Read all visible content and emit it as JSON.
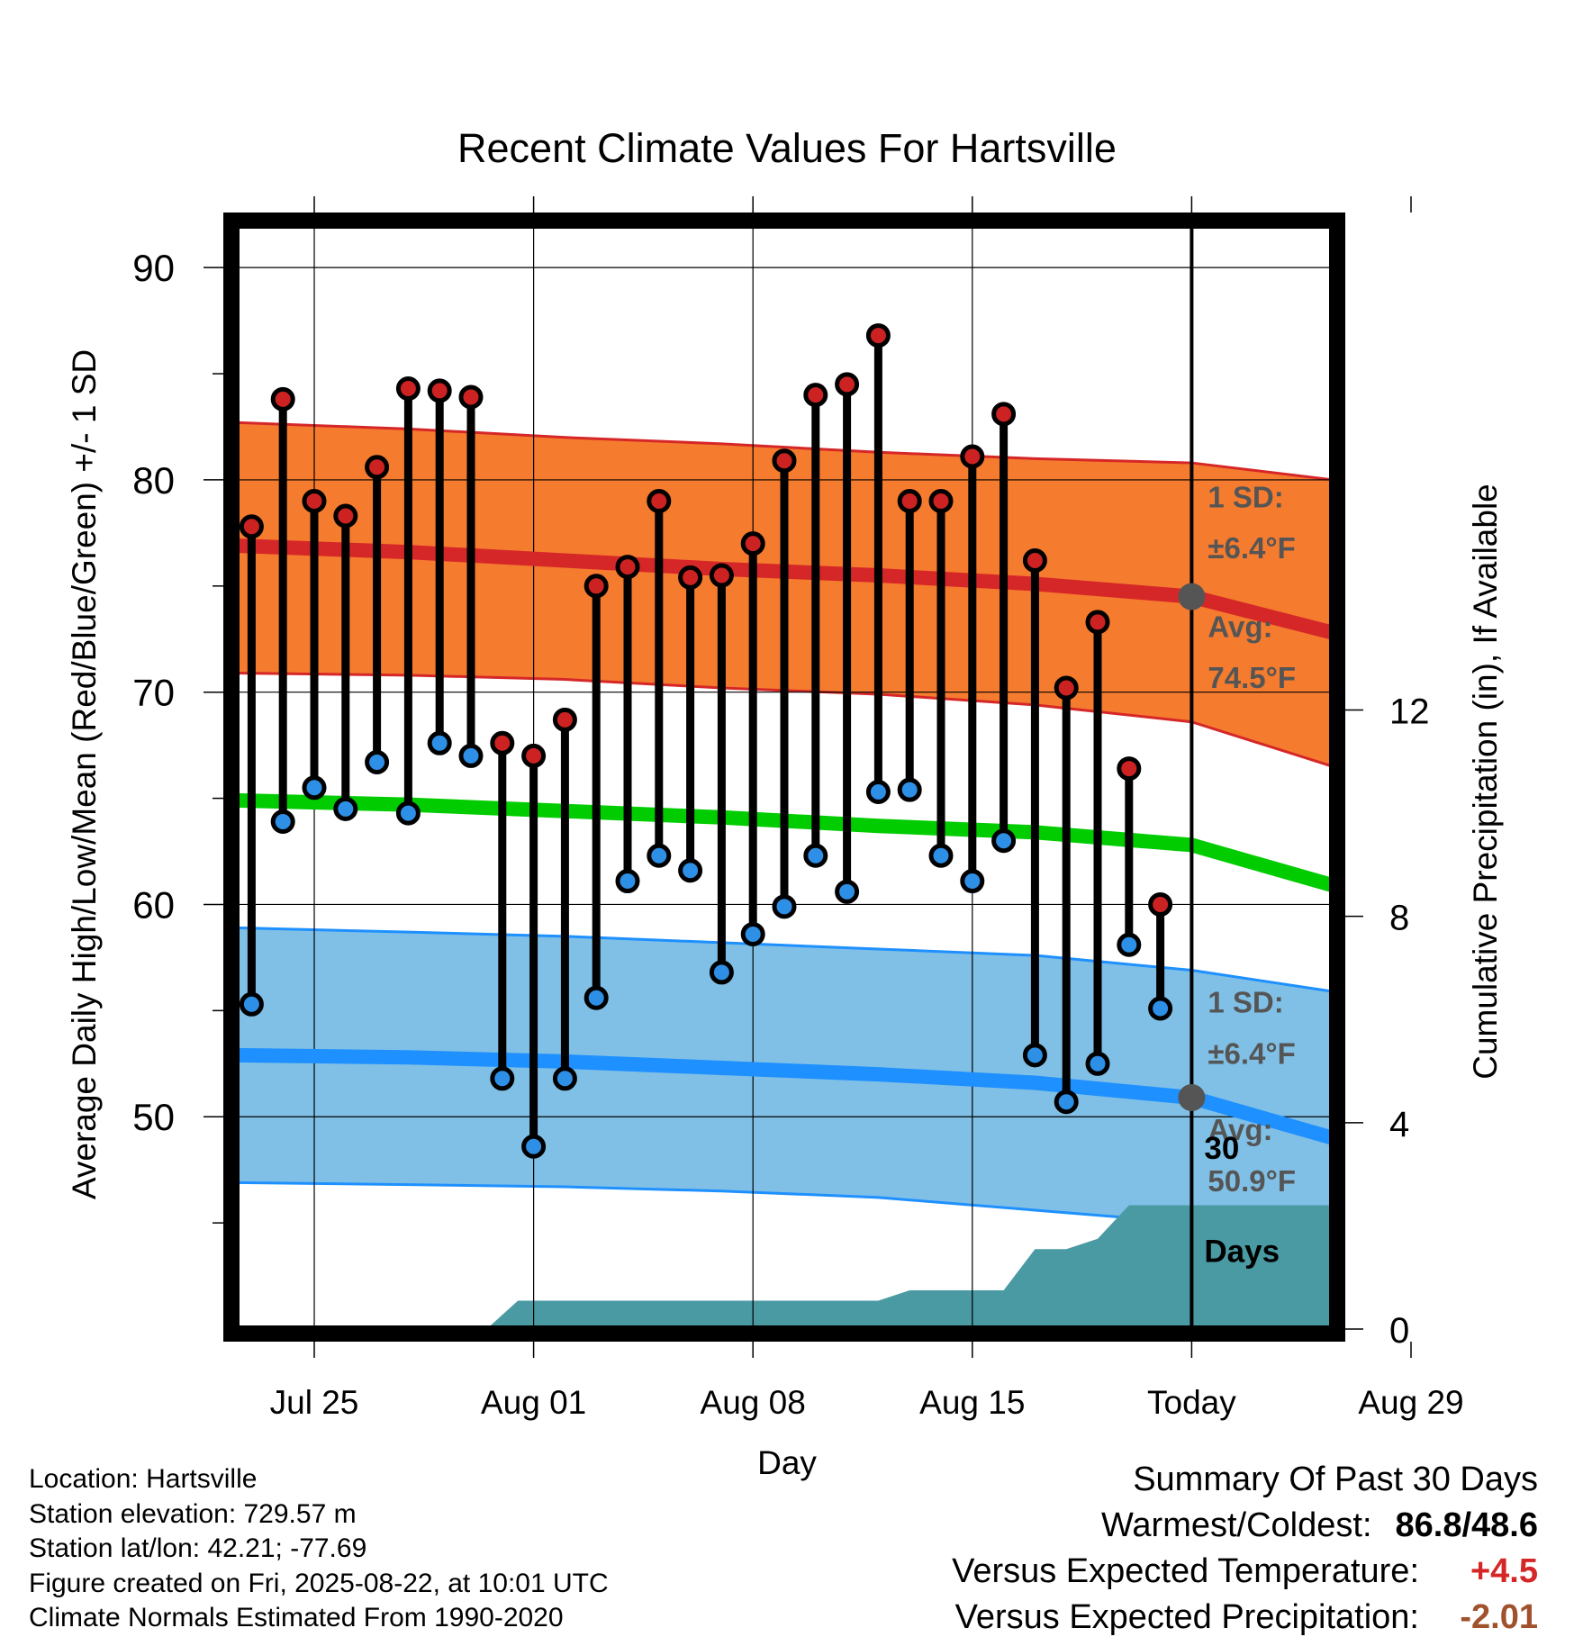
{
  "chart_data": {
    "type": "line",
    "title": "Recent Climate Values For Hartsville",
    "xlabel": "Day",
    "ylabel": "Average Daily High/Low/Mean (Red/Blue/Green) +/- 1 SD",
    "y2label": "Cumulative Precipitation (in), If Available",
    "ylim": [
      40,
      92
    ],
    "y2lim": [
      0,
      21.4
    ],
    "xlim": [
      -0.5,
      34.5
    ],
    "x_ticks": [
      {
        "x": 2,
        "label": "Jul 25"
      },
      {
        "x": 9,
        "label": "Aug 01"
      },
      {
        "x": 16,
        "label": "Aug 08"
      },
      {
        "x": 23,
        "label": "Aug 15"
      },
      {
        "x": 30,
        "label": "Today"
      },
      {
        "x": 37,
        "label": "Aug 29"
      }
    ],
    "y_ticks": [
      50,
      60,
      70,
      80,
      90
    ],
    "y2_ticks": [
      0,
      4,
      8,
      12
    ],
    "grid": true,
    "today_x": 30,
    "daily_x": [
      0,
      1,
      2,
      3,
      4,
      5,
      6,
      7,
      8,
      9,
      10,
      11,
      12,
      13,
      14,
      15,
      16,
      17,
      18,
      19,
      20,
      21,
      22,
      23,
      24,
      25,
      26,
      27,
      28,
      29
    ],
    "daily_high": [
      77.8,
      83.8,
      79.0,
      78.3,
      80.6,
      84.3,
      84.2,
      83.9,
      67.6,
      67.0,
      68.7,
      75.0,
      75.9,
      79.0,
      75.4,
      75.5,
      77.0,
      80.9,
      84.0,
      84.5,
      86.8,
      79.0,
      79.0,
      81.1,
      83.1,
      76.2,
      70.2,
      73.3,
      66.4,
      60.0
    ],
    "daily_low": [
      55.3,
      63.9,
      65.5,
      64.5,
      66.7,
      64.3,
      67.6,
      67.0,
      51.8,
      48.6,
      51.8,
      55.6,
      61.1,
      62.3,
      61.6,
      56.8,
      58.6,
      59.9,
      62.3,
      60.6,
      65.3,
      65.4,
      62.3,
      61.1,
      63.0,
      52.9,
      50.7,
      52.5,
      58.1,
      55.1
    ],
    "normals_x": [
      -0.5,
      34.5
    ],
    "series": [
      {
        "name": "Average High",
        "x": [
          -0.5,
          5,
          10,
          15,
          20,
          25,
          30,
          34.5
        ],
        "values": [
          76.9,
          76.6,
          76.2,
          75.8,
          75.5,
          75.1,
          74.5,
          72.8
        ]
      },
      {
        "name": "Average Low",
        "x": [
          -0.5,
          5,
          10,
          15,
          20,
          25,
          30,
          34.5
        ],
        "values": [
          52.9,
          52.8,
          52.6,
          52.3,
          52.0,
          51.6,
          50.9,
          49.0
        ]
      },
      {
        "name": "Average Mean",
        "x": [
          -0.5,
          5,
          10,
          15,
          20,
          25,
          30,
          34.5
        ],
        "values": [
          64.9,
          64.7,
          64.4,
          64.1,
          63.7,
          63.4,
          62.8,
          60.9
        ]
      },
      {
        "name": "High +1 SD",
        "x": [
          -0.5,
          5,
          10,
          15,
          20,
          25,
          30,
          34.5
        ],
        "values": [
          82.7,
          82.4,
          82.0,
          81.7,
          81.3,
          81.0,
          80.8,
          80.0
        ]
      },
      {
        "name": "High -1 SD",
        "x": [
          -0.5,
          5,
          10,
          15,
          20,
          25,
          30,
          34.5
        ],
        "values": [
          70.9,
          70.8,
          70.6,
          70.2,
          69.9,
          69.4,
          68.6,
          66.5
        ]
      },
      {
        "name": "Low +1 SD",
        "x": [
          -0.5,
          5,
          10,
          15,
          20,
          25,
          30,
          34.5
        ],
        "values": [
          58.9,
          58.7,
          58.5,
          58.2,
          57.9,
          57.6,
          56.9,
          55.9
        ]
      },
      {
        "name": "Low -1 SD",
        "x": [
          -0.5,
          5,
          10,
          15,
          20,
          25,
          30,
          34.5
        ],
        "values": [
          46.9,
          46.8,
          46.7,
          46.5,
          46.2,
          45.6,
          45.0,
          45.0
        ]
      }
    ],
    "precip_x": [
      -0.5,
      7.5,
      8.5,
      9,
      10,
      11,
      12,
      13,
      14,
      15,
      16,
      17,
      18,
      19,
      20,
      21,
      22,
      23,
      24,
      25,
      26,
      27,
      28,
      29,
      30,
      34.5
    ],
    "precip_cumulative": [
      0,
      0,
      0.55,
      0.55,
      0.55,
      0.55,
      0.55,
      0.55,
      0.55,
      0.55,
      0.55,
      0.55,
      0.55,
      0.55,
      0.55,
      0.75,
      0.75,
      0.75,
      0.75,
      1.55,
      1.55,
      1.75,
      2.4,
      2.4,
      2.4,
      2.4
    ],
    "annotations": {
      "high_sd_label": "1 SD:",
      "high_sd_value": "±6.4°F",
      "high_avg_label": "Avg:",
      "high_avg_value": "74.5°F",
      "low_sd_label": "1 SD:",
      "low_sd_value": "±6.4°F",
      "low_avg_label": "Avg:",
      "low_avg_value": "50.9°F",
      "period_number": "30",
      "period_unit": "Days"
    },
    "colors": {
      "high_band": "#f57b2e",
      "high_line": "#d62728",
      "low_band": "#80c0e6",
      "low_line": "#1e90ff",
      "mean_line": "#00cc00",
      "precip_fill": "#4a9aa3",
      "high_marker": "#cc2222",
      "low_marker": "#2e8fe6",
      "annotation_text": "#555555"
    }
  },
  "footer": {
    "location": "Location: Hartsville",
    "elevation": "Station elevation: 729.57 m",
    "latlon": "Station lat/lon: 42.21; -77.69",
    "created": "Figure created on Fri, 2025-08-22, at 10:01 UTC",
    "normals": "Climate Normals Estimated From 1990-2020"
  },
  "summary": {
    "title": "Summary Of Past 30 Days",
    "warmest_coldest_label": "Warmest/Coldest:",
    "warmest_coldest_value": "86.8/48.6",
    "temp_label": "Versus Expected Temperature:",
    "temp_value": "+4.5",
    "precip_label": "Versus Expected Precipitation:",
    "precip_value": "-2.01"
  }
}
